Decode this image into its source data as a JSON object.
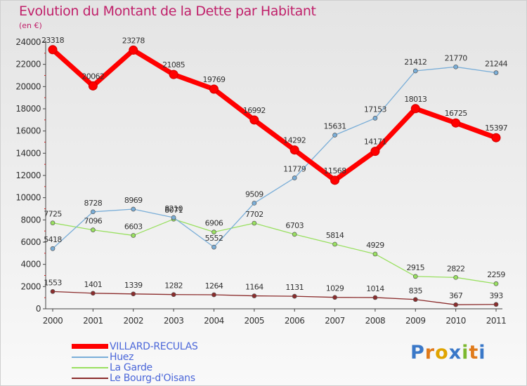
{
  "title": "Evolution du Montant de la Dette par Habitant",
  "subtitle": "(en €)",
  "logo_text": "Proxiti",
  "chart_data": {
    "type": "line",
    "x": [
      "2000",
      "2001",
      "2002",
      "2003",
      "2004",
      "2005",
      "2006",
      "2007",
      "2008",
      "2009",
      "2010",
      "2011"
    ],
    "ylim": [
      0,
      24000
    ],
    "yticks": [
      "0",
      "2000",
      "4000",
      "6000",
      "8000",
      "10000",
      "12000",
      "14000",
      "16000",
      "18000",
      "20000",
      "22000",
      "24000"
    ],
    "grid": false,
    "legend_position": "bottom-left",
    "series": [
      {
        "name": "VILLARD-RECULAS",
        "color": "#ff0000",
        "values": [
          23318,
          20062,
          23278,
          21085,
          19769,
          16992,
          14292,
          11568,
          14171,
          18013,
          16725,
          15397
        ]
      },
      {
        "name": "Huez",
        "color": "#7aaed8",
        "values": [
          5418,
          8728,
          8969,
          8210,
          5552,
          9509,
          11779,
          15631,
          17153,
          21412,
          21770,
          21244
        ]
      },
      {
        "name": "La Garde",
        "color": "#99e060",
        "values": [
          7725,
          7096,
          6603,
          8071,
          6906,
          7702,
          6703,
          5814,
          4929,
          2915,
          2822,
          2259
        ]
      },
      {
        "name": "Le Bourg-d'Oisans",
        "color": "#8b2c2c",
        "values": [
          1553,
          1401,
          1339,
          1282,
          1264,
          1164,
          1131,
          1029,
          1014,
          835,
          367,
          393
        ]
      }
    ]
  }
}
